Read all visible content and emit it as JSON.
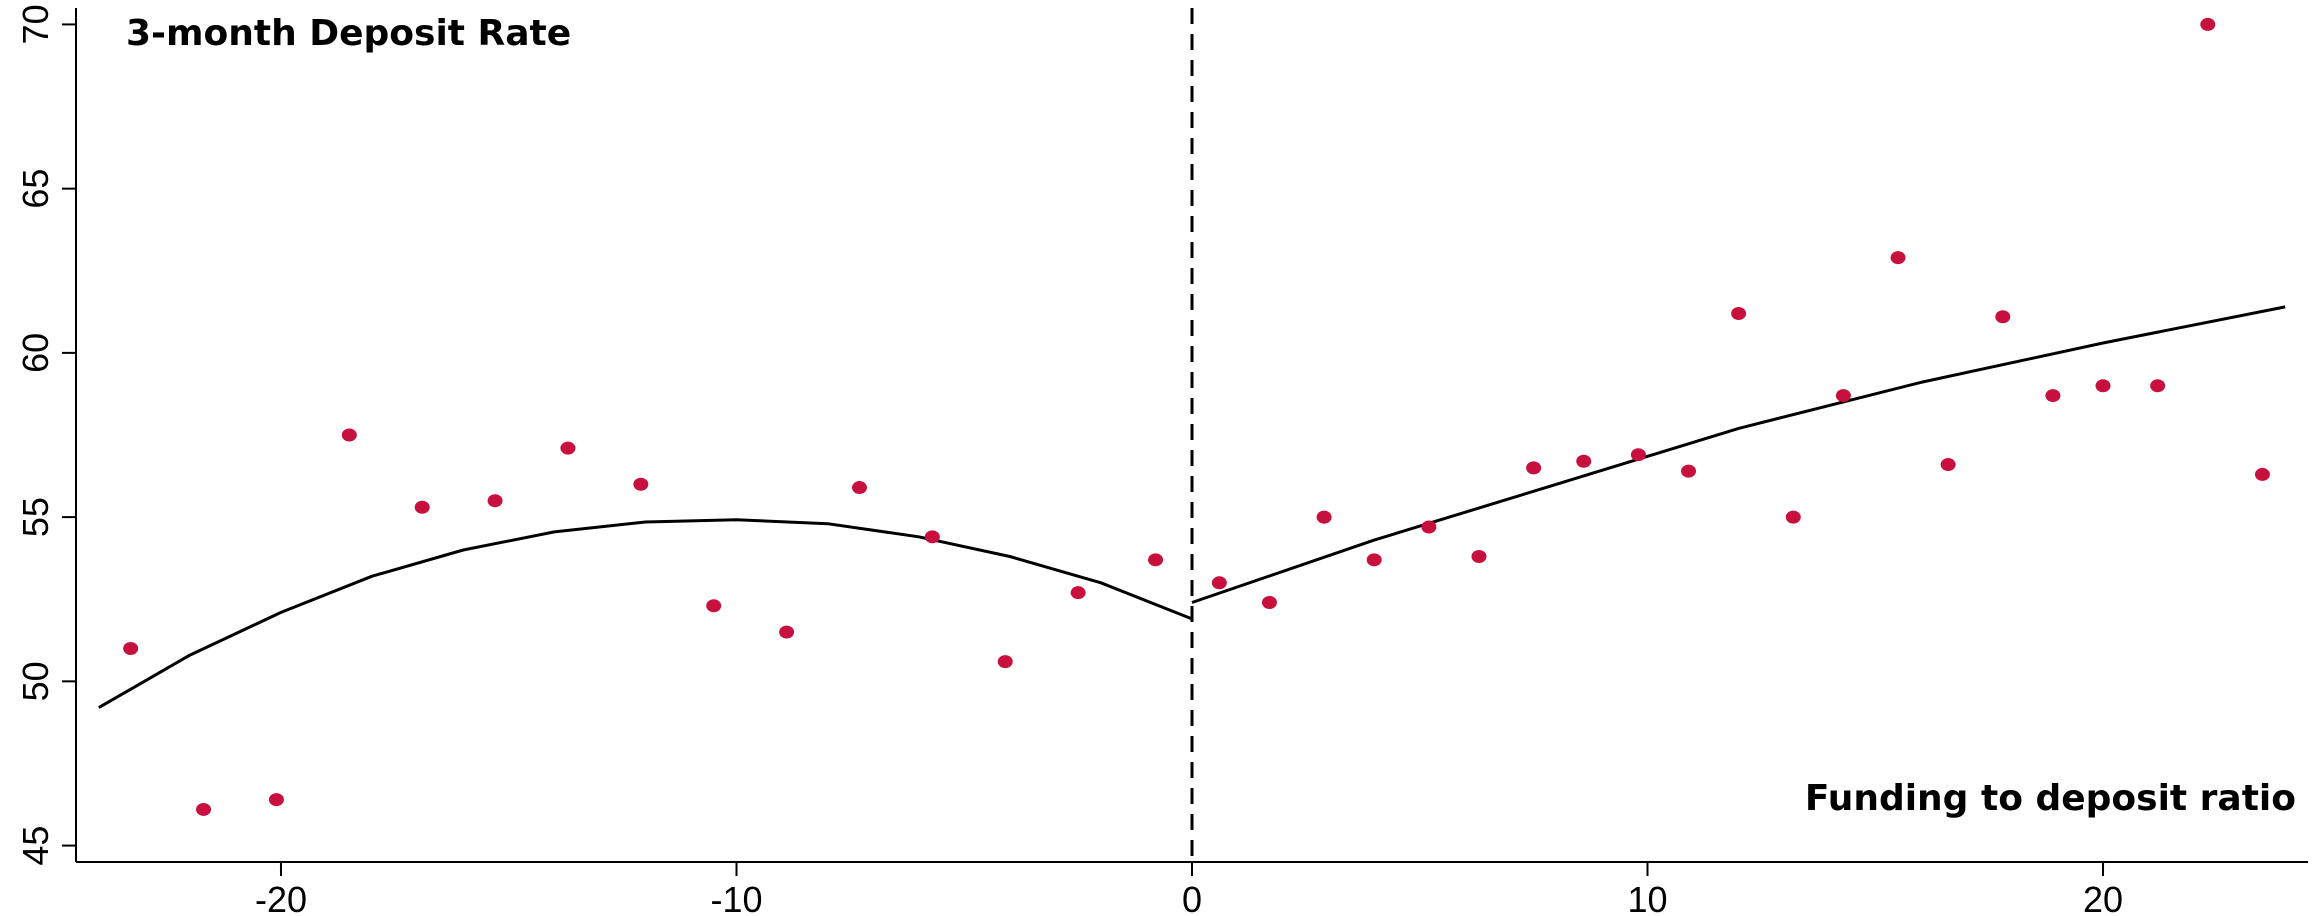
{
  "chart_data": {
    "type": "scatter",
    "title": "3-month Deposit Rate",
    "xlabel": "Funding to deposit ratio",
    "ylabel": "",
    "xlim": [
      -24.5,
      24.5
    ],
    "ylim": [
      44.5,
      70.5
    ],
    "x_ticks": [
      -20,
      -10,
      0,
      10,
      20
    ],
    "y_ticks": [
      45,
      50,
      55,
      60,
      65,
      70
    ],
    "cutoff": 0,
    "grid": false,
    "point_color": "#c8103e",
    "line_color": "#000000",
    "series": [
      {
        "type": "scatter",
        "points": [
          {
            "x": -23.3,
            "y": 51.0
          },
          {
            "x": -21.7,
            "y": 46.1
          },
          {
            "x": -20.1,
            "y": 46.4
          },
          {
            "x": -18.5,
            "y": 57.5
          },
          {
            "x": -16.9,
            "y": 55.3
          },
          {
            "x": -15.3,
            "y": 55.5
          },
          {
            "x": -13.7,
            "y": 57.1
          },
          {
            "x": -12.1,
            "y": 56.0
          },
          {
            "x": -10.5,
            "y": 52.3
          },
          {
            "x": -8.9,
            "y": 51.5
          },
          {
            "x": -7.3,
            "y": 55.9
          },
          {
            "x": -5.7,
            "y": 54.4
          },
          {
            "x": -4.1,
            "y": 50.6
          },
          {
            "x": -2.5,
            "y": 52.7
          },
          {
            "x": -0.8,
            "y": 53.7
          },
          {
            "x": 0.6,
            "y": 53.0
          },
          {
            "x": 1.7,
            "y": 52.4
          },
          {
            "x": 2.9,
            "y": 55.0
          },
          {
            "x": 4.0,
            "y": 53.7
          },
          {
            "x": 5.2,
            "y": 54.7
          },
          {
            "x": 6.3,
            "y": 53.8
          },
          {
            "x": 7.5,
            "y": 56.5
          },
          {
            "x": 8.6,
            "y": 56.7
          },
          {
            "x": 9.8,
            "y": 56.9
          },
          {
            "x": 10.9,
            "y": 56.4
          },
          {
            "x": 12.0,
            "y": 61.2
          },
          {
            "x": 13.2,
            "y": 55.0
          },
          {
            "x": 14.3,
            "y": 58.7
          },
          {
            "x": 15.5,
            "y": 62.9
          },
          {
            "x": 16.6,
            "y": 56.6
          },
          {
            "x": 17.8,
            "y": 61.1
          },
          {
            "x": 18.9,
            "y": 58.7
          },
          {
            "x": 20.0,
            "y": 59.0
          },
          {
            "x": 21.2,
            "y": 59.0
          },
          {
            "x": 22.3,
            "y": 70.0
          },
          {
            "x": 23.5,
            "y": 56.3
          }
        ]
      },
      {
        "type": "line",
        "segment": "left-fit",
        "points": [
          {
            "x": -24.0,
            "y": 49.2
          },
          {
            "x": -22.0,
            "y": 50.8
          },
          {
            "x": -20.0,
            "y": 52.1
          },
          {
            "x": -18.0,
            "y": 53.2
          },
          {
            "x": -16.0,
            "y": 54.0
          },
          {
            "x": -14.0,
            "y": 54.55
          },
          {
            "x": -12.0,
            "y": 54.85
          },
          {
            "x": -10.0,
            "y": 54.92
          },
          {
            "x": -8.0,
            "y": 54.8
          },
          {
            "x": -6.0,
            "y": 54.4
          },
          {
            "x": -4.0,
            "y": 53.8
          },
          {
            "x": -2.0,
            "y": 53.0
          },
          {
            "x": 0.0,
            "y": 51.9
          }
        ]
      },
      {
        "type": "line",
        "segment": "right-fit",
        "points": [
          {
            "x": 0.0,
            "y": 52.4
          },
          {
            "x": 4.0,
            "y": 54.3
          },
          {
            "x": 8.0,
            "y": 56.0
          },
          {
            "x": 12.0,
            "y": 57.7
          },
          {
            "x": 16.0,
            "y": 59.1
          },
          {
            "x": 20.0,
            "y": 60.3
          },
          {
            "x": 24.0,
            "y": 61.4
          }
        ]
      }
    ]
  }
}
